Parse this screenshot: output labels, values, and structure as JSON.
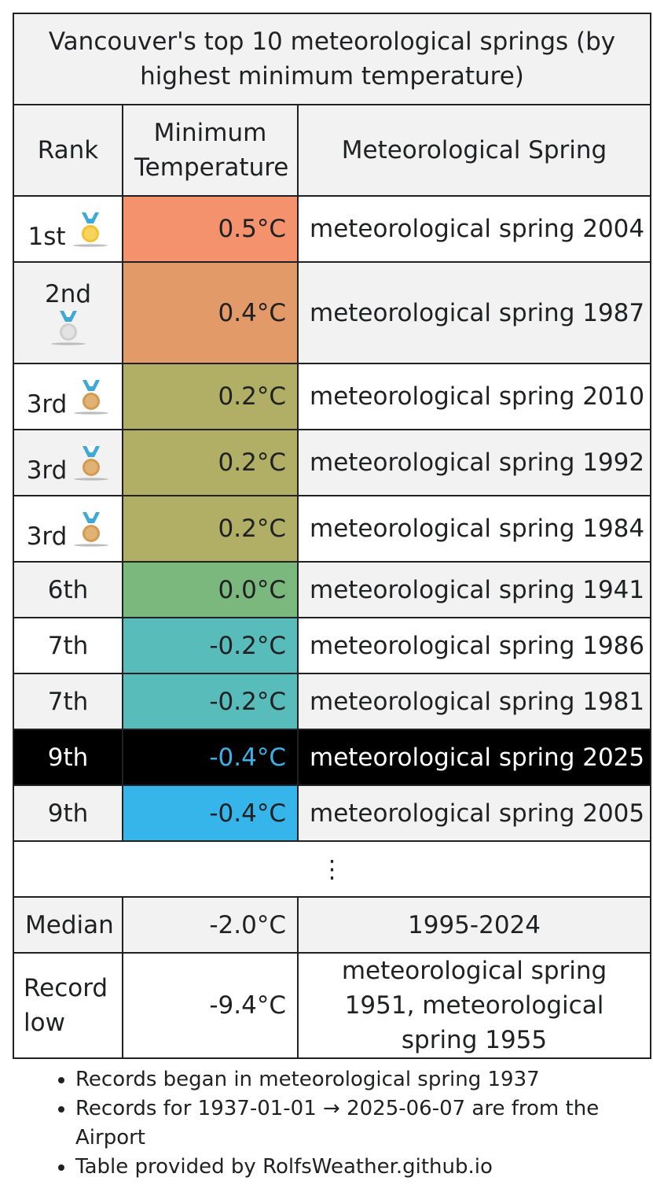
{
  "caption": "Vancouver's top 10 meteorological springs (by highest minimum temperature)",
  "headers": {
    "rank": "Rank",
    "temperature": "Minimum Temperature",
    "period": "Meteorological Spring"
  },
  "rows": [
    {
      "rank": "1st",
      "medal": "gold-medal-icon",
      "temp": "0.5°C",
      "period": "meteorological spring 2004",
      "color": "#f4926e"
    },
    {
      "rank": "2nd",
      "medal": "silver-medal-icon",
      "temp": "0.4°C",
      "period": "meteorological spring 1987",
      "color": "#e29a69"
    },
    {
      "rank": "3rd",
      "medal": "bronze-medal-icon",
      "temp": "0.2°C",
      "period": "meteorological spring 2010",
      "color": "#b0af65"
    },
    {
      "rank": "3rd",
      "medal": "bronze-medal-icon",
      "temp": "0.2°C",
      "period": "meteorological spring 1992",
      "color": "#b0af65"
    },
    {
      "rank": "3rd",
      "medal": "bronze-medal-icon",
      "temp": "0.2°C",
      "period": "meteorological spring 1984",
      "color": "#b0af65"
    },
    {
      "rank": "6th",
      "temp": "0.0°C",
      "period": "meteorological spring 1941",
      "color": "#7ab87e"
    },
    {
      "rank": "7th",
      "temp": "-0.2°C",
      "period": "meteorological spring 1986",
      "color": "#58bcba"
    },
    {
      "rank": "7th",
      "temp": "-0.2°C",
      "period": "meteorological spring 1981",
      "color": "#58bcba"
    },
    {
      "rank": "9th",
      "temp": "-0.4°C",
      "period": "meteorological spring 2025",
      "color": "#3bb1e8"
    },
    {
      "rank": "9th",
      "temp": "-0.4°C",
      "period": "meteorological spring 2005",
      "color": "#35b5ea"
    }
  ],
  "ellipsis": "⋮",
  "median": {
    "label": "Median",
    "temp": "-2.0°C",
    "period": "1995-2024"
  },
  "record_low": {
    "label": "Record low",
    "temp": "-9.4°C",
    "period": "meteorological spring 1951, meteorological spring 1955"
  },
  "notes": [
    "Records began in meteorological spring 1937",
    "Records for 1937-01-01 → 2025-06-07 are from the Airport",
    "Table provided by RolfsWeather.github.io"
  ],
  "medal_colors": {
    "gold": "#f2c232",
    "silver": "#d4d4d4",
    "bronze": "#d9a55b",
    "ribbon": "#3fa9d6"
  }
}
